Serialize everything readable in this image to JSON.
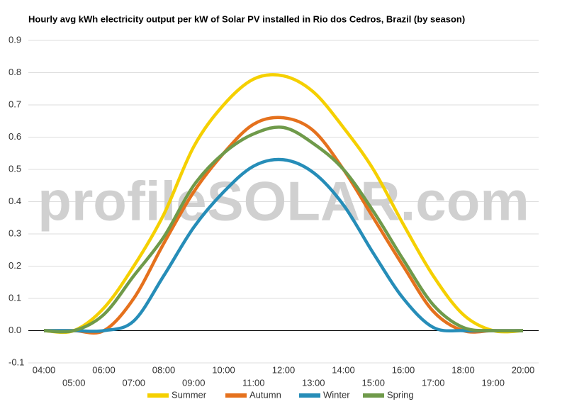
{
  "chart_data": {
    "type": "line",
    "title": "Hourly avg kWh electricity output per kW of Solar PV installed in Rio dos Cedros, Brazil (by season)",
    "watermark": "profileSOLAR.com",
    "categories": [
      "04:00",
      "05:00",
      "06:00",
      "07:00",
      "08:00",
      "09:00",
      "10:00",
      "11:00",
      "12:00",
      "13:00",
      "14:00",
      "15:00",
      "16:00",
      "17:00",
      "18:00",
      "19:00",
      "20:00"
    ],
    "ylim": [
      -0.1,
      0.9
    ],
    "yticks": [
      -0.1,
      {
        "value": 0,
        "label": "0.0"
      },
      0.1,
      0.2,
      0.3,
      0.4,
      0.5,
      0.6,
      0.7,
      0.8,
      0.9
    ],
    "grid": true,
    "legend": "bottom",
    "series": [
      {
        "name": "Summer",
        "color": "#f5d000",
        "values": [
          0,
          0,
          0.07,
          0.2,
          0.36,
          0.57,
          0.7,
          0.78,
          0.79,
          0.74,
          0.63,
          0.5,
          0.33,
          0.17,
          0.05,
          0,
          0
        ]
      },
      {
        "name": "Autumn",
        "color": "#e5711d",
        "values": [
          0,
          0,
          0,
          0.1,
          0.27,
          0.43,
          0.55,
          0.64,
          0.66,
          0.62,
          0.5,
          0.35,
          0.2,
          0.06,
          0,
          0,
          0
        ]
      },
      {
        "name": "Winter",
        "color": "#268db8",
        "values": [
          0,
          0,
          0,
          0.03,
          0.17,
          0.32,
          0.43,
          0.51,
          0.53,
          0.49,
          0.39,
          0.24,
          0.1,
          0.01,
          0,
          0,
          0
        ]
      },
      {
        "name": "Spring",
        "color": "#6f9a4a",
        "values": [
          0,
          0,
          0.05,
          0.17,
          0.29,
          0.45,
          0.55,
          0.61,
          0.63,
          0.58,
          0.5,
          0.37,
          0.22,
          0.08,
          0.01,
          0,
          0
        ]
      }
    ]
  }
}
